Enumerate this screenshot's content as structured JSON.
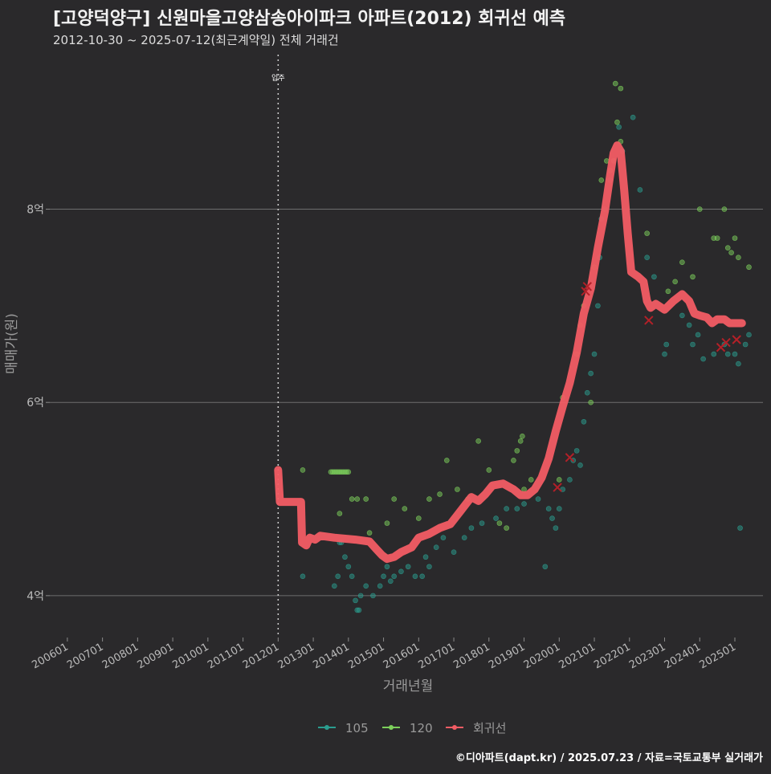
{
  "chart_data": {
    "type": "scatter",
    "title": "[고양덕양구] 신원마을고양삼송아이파크 아파트(2012) 회귀선 예측",
    "subtitle": "2012-10-30 ~ 2025-07-12(최근계약일) 전체 거래건",
    "xlabel": "거래년월",
    "ylabel": "매매가(원)",
    "caption": "©디아파트(dapt.kr) / 2025.07.23 / 자료=국토교통부 실거래가",
    "xlim": [
      2005.5,
      2025.8
    ],
    "ylim": [
      3.6,
      9.6
    ],
    "x_ticks": [
      2006,
      2007,
      2008,
      2009,
      2010,
      2011,
      2012,
      2013,
      2014,
      2015,
      2016,
      2017,
      2018,
      2019,
      2020,
      2021,
      2022,
      2023,
      2024,
      2025
    ],
    "x_tick_labels": [
      "200601",
      "200701",
      "200801",
      "200901",
      "201001",
      "201101",
      "201201",
      "201301",
      "201401",
      "201501",
      "201601",
      "201701",
      "201801",
      "201901",
      "202001",
      "202101",
      "202201",
      "202301",
      "202401",
      "202501"
    ],
    "y_ticks": [
      4,
      6,
      8
    ],
    "y_tick_labels": [
      "4억",
      "6억",
      "8억"
    ],
    "vline": {
      "x": 2012,
      "label": "입주"
    },
    "legend": {
      "position": "bottom",
      "entries": [
        "105",
        "120",
        "회귀선"
      ]
    },
    "colors": {
      "105": "#2a9d8f",
      "120": "#7ccf5b",
      "regression": "#f25c64",
      "outlier": "#b32028"
    },
    "series": [
      {
        "name": "105",
        "points": [
          [
            2012.7,
            4.2
          ],
          [
            2013.6,
            4.1
          ],
          [
            2013.7,
            4.2
          ],
          [
            2013.75,
            4.55
          ],
          [
            2013.8,
            4.55
          ],
          [
            2013.9,
            4.4
          ],
          [
            2014.0,
            4.3
          ],
          [
            2014.1,
            4.2
          ],
          [
            2014.2,
            3.95
          ],
          [
            2014.25,
            3.85
          ],
          [
            2014.3,
            3.85
          ],
          [
            2014.35,
            4.0
          ],
          [
            2014.5,
            4.1
          ],
          [
            2014.7,
            4.0
          ],
          [
            2014.9,
            4.1
          ],
          [
            2015.0,
            4.2
          ],
          [
            2015.1,
            4.3
          ],
          [
            2015.2,
            4.15
          ],
          [
            2015.3,
            4.2
          ],
          [
            2015.5,
            4.25
          ],
          [
            2015.7,
            4.3
          ],
          [
            2015.9,
            4.2
          ],
          [
            2016.1,
            4.2
          ],
          [
            2016.2,
            4.4
          ],
          [
            2016.3,
            4.3
          ],
          [
            2016.5,
            4.5
          ],
          [
            2016.7,
            4.6
          ],
          [
            2017.0,
            4.45
          ],
          [
            2017.3,
            4.6
          ],
          [
            2017.5,
            4.7
          ],
          [
            2017.8,
            4.75
          ],
          [
            2018.2,
            4.8
          ],
          [
            2018.5,
            4.9
          ],
          [
            2018.8,
            4.9
          ],
          [
            2019.0,
            4.95
          ],
          [
            2019.4,
            5.0
          ],
          [
            2019.6,
            4.3
          ],
          [
            2019.7,
            4.9
          ],
          [
            2019.8,
            4.8
          ],
          [
            2019.9,
            4.7
          ],
          [
            2020.0,
            4.9
          ],
          [
            2020.1,
            5.1
          ],
          [
            2020.3,
            5.2
          ],
          [
            2020.4,
            5.4
          ],
          [
            2020.5,
            5.5
          ],
          [
            2020.6,
            5.35
          ],
          [
            2020.7,
            5.8
          ],
          [
            2020.8,
            6.1
          ],
          [
            2020.9,
            6.3
          ],
          [
            2021.0,
            6.5
          ],
          [
            2021.1,
            7.0
          ],
          [
            2021.15,
            7.5
          ],
          [
            2021.2,
            7.9
          ],
          [
            2021.3,
            8.0
          ],
          [
            2021.45,
            8.3
          ],
          [
            2021.55,
            8.5
          ],
          [
            2021.7,
            8.85
          ],
          [
            2021.8,
            8.6
          ],
          [
            2022.1,
            8.95
          ],
          [
            2022.3,
            8.2
          ],
          [
            2022.5,
            7.5
          ],
          [
            2022.7,
            7.3
          ],
          [
            2023.0,
            6.5
          ],
          [
            2023.05,
            6.6
          ],
          [
            2023.5,
            6.9
          ],
          [
            2023.7,
            6.8
          ],
          [
            2023.8,
            6.6
          ],
          [
            2023.95,
            6.7
          ],
          [
            2024.1,
            6.45
          ],
          [
            2024.4,
            6.5
          ],
          [
            2024.7,
            6.6
          ],
          [
            2024.8,
            6.5
          ],
          [
            2025.0,
            6.5
          ],
          [
            2025.1,
            6.4
          ],
          [
            2025.15,
            4.7
          ],
          [
            2025.3,
            6.6
          ],
          [
            2025.4,
            6.7
          ]
        ]
      },
      {
        "name": "120",
        "points": [
          [
            2012.7,
            5.3
          ],
          [
            2013.5,
            5.28
          ],
          [
            2013.55,
            5.28
          ],
          [
            2013.6,
            5.28
          ],
          [
            2013.65,
            5.28
          ],
          [
            2013.7,
            5.28
          ],
          [
            2013.75,
            5.28
          ],
          [
            2013.8,
            5.28
          ],
          [
            2013.85,
            5.28
          ],
          [
            2013.9,
            5.28
          ],
          [
            2013.95,
            5.28
          ],
          [
            2014.0,
            5.28
          ],
          [
            2013.75,
            4.85
          ],
          [
            2014.1,
            5.0
          ],
          [
            2014.25,
            5.0
          ],
          [
            2014.5,
            5.0
          ],
          [
            2014.6,
            4.65
          ],
          [
            2015.1,
            4.75
          ],
          [
            2015.3,
            5.0
          ],
          [
            2015.6,
            4.9
          ],
          [
            2016.0,
            4.8
          ],
          [
            2016.3,
            5.0
          ],
          [
            2016.6,
            5.05
          ],
          [
            2016.8,
            5.4
          ],
          [
            2017.1,
            5.1
          ],
          [
            2017.4,
            5.0
          ],
          [
            2017.7,
            5.6
          ],
          [
            2018.0,
            5.3
          ],
          [
            2018.3,
            4.75
          ],
          [
            2018.5,
            4.7
          ],
          [
            2018.7,
            5.4
          ],
          [
            2018.8,
            5.5
          ],
          [
            2018.9,
            5.6
          ],
          [
            2018.95,
            5.65
          ],
          [
            2019.0,
            5.1
          ],
          [
            2019.2,
            5.2
          ],
          [
            2020.0,
            5.2
          ],
          [
            2020.1,
            6.05
          ],
          [
            2020.5,
            6.5
          ],
          [
            2020.6,
            6.8
          ],
          [
            2020.7,
            7.0
          ],
          [
            2020.9,
            6.0
          ],
          [
            2021.0,
            7.4
          ],
          [
            2021.2,
            8.3
          ],
          [
            2021.35,
            8.5
          ],
          [
            2021.45,
            8.4
          ],
          [
            2021.55,
            8.5
          ],
          [
            2021.65,
            8.9
          ],
          [
            2021.75,
            8.7
          ],
          [
            2021.6,
            9.3
          ],
          [
            2021.75,
            9.25
          ],
          [
            2022.5,
            7.75
          ],
          [
            2023.1,
            7.15
          ],
          [
            2023.3,
            7.25
          ],
          [
            2023.5,
            7.45
          ],
          [
            2023.8,
            7.3
          ],
          [
            2024.0,
            8.0
          ],
          [
            2024.4,
            7.7
          ],
          [
            2024.5,
            7.7
          ],
          [
            2024.7,
            8.0
          ],
          [
            2024.8,
            7.6
          ],
          [
            2024.9,
            7.55
          ],
          [
            2025.0,
            7.7
          ],
          [
            2025.1,
            7.5
          ],
          [
            2025.4,
            7.4
          ]
        ]
      }
    ],
    "regression": {
      "name": "회귀선",
      "points": [
        [
          2012.0,
          5.3
        ],
        [
          2012.05,
          4.97
        ],
        [
          2012.65,
          4.97
        ],
        [
          2012.68,
          4.55
        ],
        [
          2012.8,
          4.52
        ],
        [
          2012.9,
          4.6
        ],
        [
          2013.05,
          4.58
        ],
        [
          2013.2,
          4.62
        ],
        [
          2013.6,
          4.6
        ],
        [
          2014.2,
          4.58
        ],
        [
          2014.6,
          4.56
        ],
        [
          2014.8,
          4.48
        ],
        [
          2014.95,
          4.42
        ],
        [
          2015.1,
          4.38
        ],
        [
          2015.3,
          4.4
        ],
        [
          2015.5,
          4.45
        ],
        [
          2015.8,
          4.5
        ],
        [
          2016.0,
          4.6
        ],
        [
          2016.3,
          4.64
        ],
        [
          2016.6,
          4.7
        ],
        [
          2016.9,
          4.74
        ],
        [
          2017.2,
          4.88
        ],
        [
          2017.5,
          5.02
        ],
        [
          2017.7,
          4.98
        ],
        [
          2017.9,
          5.05
        ],
        [
          2018.1,
          5.14
        ],
        [
          2018.4,
          5.16
        ],
        [
          2018.7,
          5.1
        ],
        [
          2018.9,
          5.04
        ],
        [
          2019.1,
          5.04
        ],
        [
          2019.3,
          5.1
        ],
        [
          2019.5,
          5.22
        ],
        [
          2019.7,
          5.42
        ],
        [
          2019.9,
          5.7
        ],
        [
          2020.1,
          5.96
        ],
        [
          2020.3,
          6.2
        ],
        [
          2020.5,
          6.52
        ],
        [
          2020.7,
          6.92
        ],
        [
          2020.9,
          7.18
        ],
        [
          2021.1,
          7.6
        ],
        [
          2021.3,
          7.98
        ],
        [
          2021.45,
          8.35
        ],
        [
          2021.55,
          8.58
        ],
        [
          2021.65,
          8.66
        ],
        [
          2021.75,
          8.6
        ],
        [
          2021.85,
          8.2
        ],
        [
          2021.95,
          7.75
        ],
        [
          2022.05,
          7.35
        ],
        [
          2022.25,
          7.3
        ],
        [
          2022.4,
          7.25
        ],
        [
          2022.5,
          7.05
        ],
        [
          2022.6,
          6.98
        ],
        [
          2022.75,
          7.02
        ],
        [
          2023.0,
          6.96
        ],
        [
          2023.25,
          7.05
        ],
        [
          2023.5,
          7.12
        ],
        [
          2023.7,
          7.05
        ],
        [
          2023.85,
          6.92
        ],
        [
          2024.0,
          6.9
        ],
        [
          2024.2,
          6.88
        ],
        [
          2024.35,
          6.82
        ],
        [
          2024.5,
          6.86
        ],
        [
          2024.7,
          6.86
        ],
        [
          2024.85,
          6.82
        ],
        [
          2025.0,
          6.82
        ],
        [
          2025.2,
          6.82
        ]
      ]
    },
    "outliers": [
      [
        2019.95,
        5.12
      ],
      [
        2020.3,
        5.43
      ],
      [
        2020.75,
        7.15
      ],
      [
        2020.8,
        7.2
      ],
      [
        2022.55,
        6.85
      ],
      [
        2024.6,
        6.57
      ],
      [
        2024.75,
        6.62
      ],
      [
        2025.05,
        6.65
      ]
    ]
  }
}
